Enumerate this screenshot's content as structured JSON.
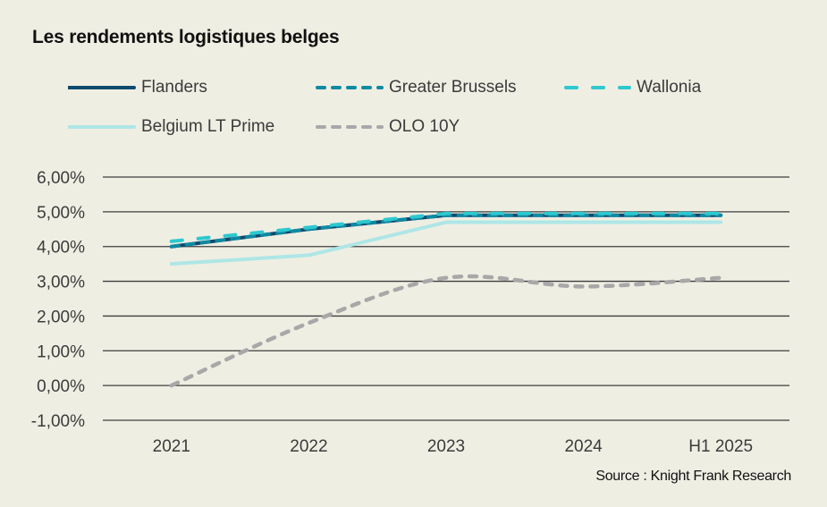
{
  "chart_data": {
    "type": "line",
    "title": "Les rendements logistiques belges",
    "source": "Source : Knight Frank Research",
    "xlabel": "",
    "ylabel": "",
    "categories": [
      "2021",
      "2022",
      "2023",
      "2024",
      "H1 2025"
    ],
    "ylim": [
      -1,
      6
    ],
    "yticks": [
      6,
      5,
      4,
      3,
      2,
      1,
      0,
      -1
    ],
    "ytick_labels": [
      "6,00%",
      "5,00%",
      "4,00%",
      "3,00%",
      "2,00%",
      "1,00%",
      "0,00%",
      "-1,00%"
    ],
    "grid": true,
    "legend_position": "top",
    "series": [
      {
        "name": "Flanders",
        "values": [
          4.0,
          4.5,
          4.9,
          4.9,
          4.9
        ],
        "color": "#0f4a6e",
        "style": "solid"
      },
      {
        "name": "Greater Brussels",
        "values": [
          4.0,
          4.5,
          4.9,
          4.9,
          4.9
        ],
        "color": "#0e8aa3",
        "style": "short-dash"
      },
      {
        "name": "Wallonia",
        "values": [
          4.15,
          4.55,
          4.95,
          4.95,
          4.95
        ],
        "color": "#2ec8cf",
        "style": "long-dash"
      },
      {
        "name": "Belgium LT Prime",
        "values": [
          3.5,
          3.75,
          4.7,
          4.7,
          4.7
        ],
        "color": "#aee6e6",
        "style": "solid"
      },
      {
        "name": "OLO 10Y",
        "values": [
          0.0,
          1.8,
          3.1,
          2.85,
          3.1
        ],
        "color": "#a8a8a8",
        "style": "short-dash"
      }
    ]
  }
}
